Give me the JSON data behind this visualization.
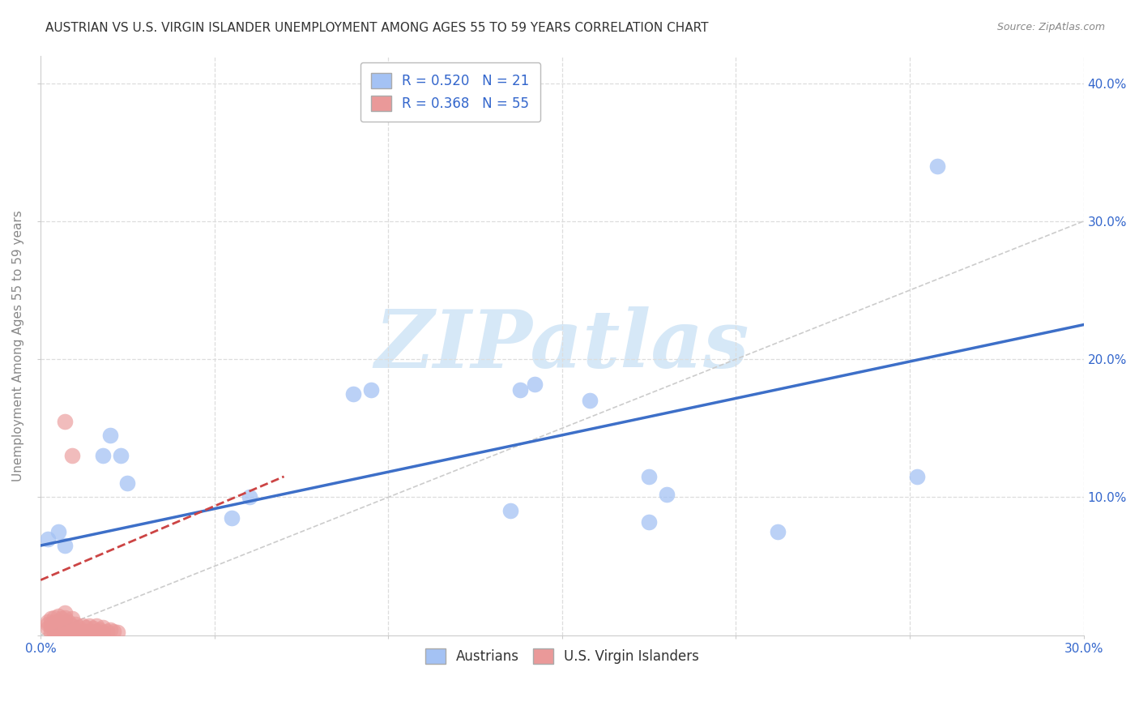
{
  "title": "AUSTRIAN VS U.S. VIRGIN ISLANDER UNEMPLOYMENT AMONG AGES 55 TO 59 YEARS CORRELATION CHART",
  "source": "Source: ZipAtlas.com",
  "ylabel": "Unemployment Among Ages 55 to 59 years",
  "xlim": [
    0.0,
    0.3
  ],
  "ylim": [
    0.0,
    0.42
  ],
  "xtick_positions": [
    0.0,
    0.05,
    0.1,
    0.15,
    0.2,
    0.25,
    0.3
  ],
  "xtick_labels": [
    "0.0%",
    "",
    "",
    "",
    "",
    "",
    "30.0%"
  ],
  "ytick_positions": [
    0.0,
    0.1,
    0.2,
    0.3,
    0.4
  ],
  "ytick_labels": [
    "",
    "10.0%",
    "20.0%",
    "30.0%",
    "40.0%"
  ],
  "blue_x": [
    0.002,
    0.005,
    0.007,
    0.018,
    0.02,
    0.023,
    0.025,
    0.055,
    0.06,
    0.09,
    0.095,
    0.135,
    0.138,
    0.142,
    0.158,
    0.175,
    0.18,
    0.212,
    0.252,
    0.258,
    0.175
  ],
  "blue_y": [
    0.07,
    0.075,
    0.065,
    0.13,
    0.145,
    0.13,
    0.11,
    0.085,
    0.1,
    0.175,
    0.178,
    0.09,
    0.178,
    0.182,
    0.17,
    0.115,
    0.102,
    0.075,
    0.115,
    0.34,
    0.082
  ],
  "pink_x": [
    0.002,
    0.002,
    0.002,
    0.003,
    0.003,
    0.003,
    0.003,
    0.004,
    0.004,
    0.004,
    0.004,
    0.005,
    0.005,
    0.005,
    0.005,
    0.005,
    0.006,
    0.006,
    0.006,
    0.006,
    0.007,
    0.007,
    0.007,
    0.007,
    0.007,
    0.008,
    0.008,
    0.008,
    0.009,
    0.009,
    0.009,
    0.01,
    0.01,
    0.01,
    0.011,
    0.011,
    0.012,
    0.012,
    0.013,
    0.013,
    0.014,
    0.014,
    0.015,
    0.015,
    0.016,
    0.016,
    0.017,
    0.018,
    0.018,
    0.019,
    0.02,
    0.021,
    0.022,
    0.007,
    0.009
  ],
  "pink_y": [
    0.005,
    0.008,
    0.01,
    0.002,
    0.005,
    0.008,
    0.012,
    0.003,
    0.006,
    0.009,
    0.013,
    0.002,
    0.004,
    0.007,
    0.01,
    0.014,
    0.001,
    0.004,
    0.008,
    0.012,
    0.003,
    0.006,
    0.009,
    0.013,
    0.016,
    0.002,
    0.005,
    0.01,
    0.003,
    0.007,
    0.012,
    0.001,
    0.004,
    0.008,
    0.002,
    0.006,
    0.003,
    0.007,
    0.002,
    0.006,
    0.003,
    0.007,
    0.002,
    0.005,
    0.003,
    0.007,
    0.004,
    0.002,
    0.006,
    0.003,
    0.004,
    0.003,
    0.002,
    0.155,
    0.13
  ],
  "blue_line_x0": 0.0,
  "blue_line_y0": 0.065,
  "blue_line_x1": 0.3,
  "blue_line_y1": 0.225,
  "pink_line_x0": 0.0,
  "pink_line_y0": 0.04,
  "pink_line_x1": 0.07,
  "pink_line_y1": 0.115,
  "austrian_R": 0.52,
  "austrian_N": 21,
  "vi_R": 0.368,
  "vi_N": 55,
  "blue_dot_color": "#a4c2f4",
  "pink_dot_color": "#ea9999",
  "blue_line_color": "#3d6fc8",
  "pink_line_color": "#cc4444",
  "diag_line_color": "#cccccc",
  "grid_color": "#dddddd",
  "background_color": "#ffffff",
  "watermark_text": "ZIPatlas",
  "watermark_color": "#d6e8f7",
  "title_fontsize": 11,
  "axis_label_fontsize": 11,
  "tick_fontsize": 11,
  "legend_fontsize": 12
}
